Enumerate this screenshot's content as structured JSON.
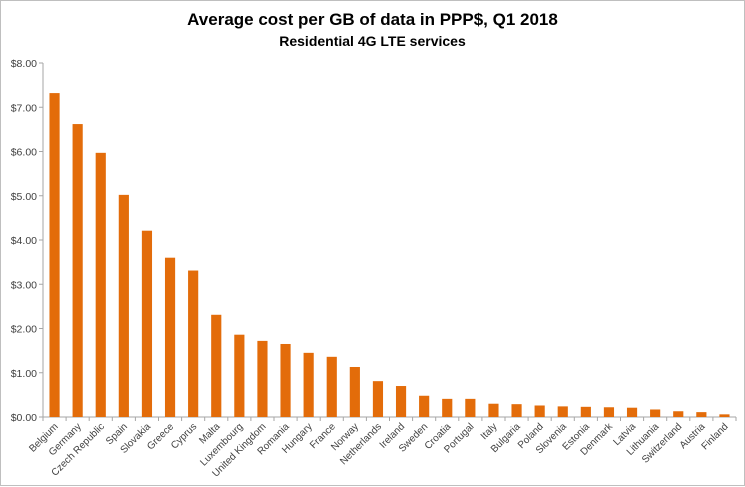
{
  "chart_data": {
    "type": "bar",
    "title": "Average cost per GB of data in PPP$, Q1 2018",
    "subtitle": "Residential 4G LTE services",
    "xlabel": "",
    "ylabel": "",
    "ylim": [
      0,
      8
    ],
    "yticks": [
      0,
      1,
      2,
      3,
      4,
      5,
      6,
      7,
      8
    ],
    "ytick_labels": [
      "$0.00",
      "$1.00",
      "$2.00",
      "$3.00",
      "$4.00",
      "$5.00",
      "$6.00",
      "$7.00",
      "$8.00"
    ],
    "grid": false,
    "legend": "none",
    "bar_color": "#E36C0A",
    "categories": [
      "Belgium",
      "Germany",
      "Czech Republic",
      "Spain",
      "Slovakia",
      "Greece",
      "Cyprus",
      "Malta",
      "Luxembourg",
      "United Kingdom",
      "Romania",
      "Hungary",
      "France",
      "Norway",
      "Netherlands",
      "Ireland",
      "Sweden",
      "Croatia",
      "Portugal",
      "Italy",
      "Bulgaria",
      "Poland",
      "Slovenia",
      "Estonia",
      "Denmark",
      "Latvia",
      "Lithuania",
      "Switzerland",
      "Austria",
      "Finland"
    ],
    "values": [
      7.32,
      6.62,
      5.97,
      5.02,
      4.21,
      3.6,
      3.31,
      2.31,
      1.86,
      1.72,
      1.65,
      1.45,
      1.36,
      1.13,
      0.81,
      0.7,
      0.48,
      0.41,
      0.41,
      0.3,
      0.29,
      0.26,
      0.24,
      0.23,
      0.22,
      0.21,
      0.17,
      0.13,
      0.11,
      0.06
    ]
  }
}
